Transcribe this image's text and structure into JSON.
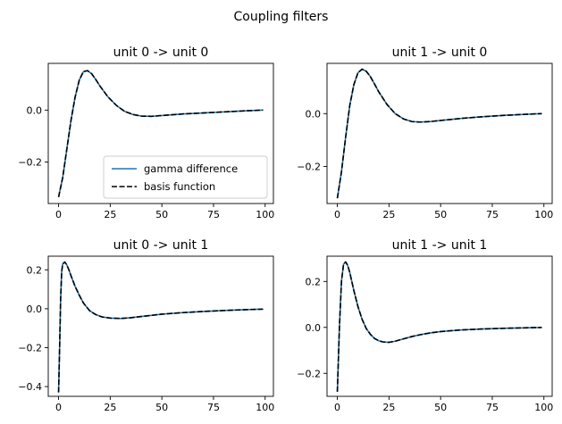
{
  "figure": {
    "title": "Coupling filters"
  },
  "chart_data": [
    {
      "type": "line",
      "title": "unit 0 -> unit 0",
      "xlim": [
        -5,
        104
      ],
      "ylim": [
        -0.36,
        0.18
      ],
      "xticks": [
        0,
        25,
        50,
        75,
        100
      ],
      "yticks": [
        0.0,
        -0.2
      ],
      "ytick_labels": [
        "0.0",
        "−0.2"
      ],
      "legend": {
        "placement": "lower-right",
        "entries": [
          {
            "label": "gamma difference",
            "color": "#1f77b4",
            "style": "solid"
          },
          {
            "label": "basis function",
            "color": "#000000",
            "style": "dashed"
          }
        ]
      },
      "series": [
        {
          "name": "gamma difference",
          "color": "#1f77b4",
          "style": "solid",
          "x": [
            0,
            2,
            4,
            6,
            8,
            10,
            12,
            14,
            16,
            18,
            20,
            24,
            28,
            32,
            36,
            40,
            45,
            50,
            55,
            60,
            70,
            80,
            90,
            99
          ],
          "y": [
            -0.335,
            -0.26,
            -0.15,
            -0.04,
            0.05,
            0.115,
            0.148,
            0.152,
            0.14,
            0.118,
            0.093,
            0.05,
            0.018,
            -0.005,
            -0.017,
            -0.023,
            -0.024,
            -0.021,
            -0.018,
            -0.015,
            -0.011,
            -0.007,
            -0.003,
            0.0
          ]
        },
        {
          "name": "basis function",
          "color": "#000000",
          "style": "dashed",
          "x": [
            0,
            2,
            4,
            6,
            8,
            10,
            12,
            14,
            16,
            18,
            20,
            24,
            28,
            32,
            36,
            40,
            45,
            50,
            55,
            60,
            70,
            80,
            90,
            99
          ],
          "y": [
            -0.335,
            -0.26,
            -0.15,
            -0.04,
            0.05,
            0.115,
            0.148,
            0.152,
            0.14,
            0.118,
            0.093,
            0.05,
            0.018,
            -0.005,
            -0.017,
            -0.023,
            -0.024,
            -0.021,
            -0.018,
            -0.015,
            -0.011,
            -0.007,
            -0.003,
            0.0
          ]
        }
      ]
    },
    {
      "type": "line",
      "title": "unit 1 -> unit 0",
      "xlim": [
        -5,
        104
      ],
      "ylim": [
        -0.34,
        0.19
      ],
      "xticks": [
        0,
        25,
        50,
        75,
        100
      ],
      "yticks": [
        0.0,
        -0.2
      ],
      "ytick_labels": [
        "0.0",
        "−0.2"
      ],
      "series": [
        {
          "name": "gamma difference",
          "color": "#1f77b4",
          "style": "solid",
          "x": [
            0,
            2,
            4,
            6,
            8,
            10,
            12,
            14,
            16,
            18,
            20,
            24,
            28,
            32,
            36,
            40,
            45,
            50,
            55,
            60,
            70,
            80,
            90,
            99
          ],
          "y": [
            -0.32,
            -0.22,
            -0.09,
            0.03,
            0.11,
            0.155,
            0.168,
            0.16,
            0.14,
            0.112,
            0.083,
            0.035,
            0.0,
            -0.02,
            -0.03,
            -0.032,
            -0.03,
            -0.026,
            -0.022,
            -0.018,
            -0.012,
            -0.007,
            -0.003,
            0.0
          ]
        },
        {
          "name": "basis function",
          "color": "#000000",
          "style": "dashed",
          "x": [
            0,
            2,
            4,
            6,
            8,
            10,
            12,
            14,
            16,
            18,
            20,
            24,
            28,
            32,
            36,
            40,
            45,
            50,
            55,
            60,
            70,
            80,
            90,
            99
          ],
          "y": [
            -0.32,
            -0.22,
            -0.09,
            0.03,
            0.11,
            0.155,
            0.168,
            0.16,
            0.14,
            0.112,
            0.083,
            0.035,
            0.0,
            -0.02,
            -0.03,
            -0.032,
            -0.03,
            -0.026,
            -0.022,
            -0.018,
            -0.012,
            -0.007,
            -0.003,
            0.0
          ]
        }
      ]
    },
    {
      "type": "line",
      "title": "unit 0 -> unit 1",
      "xlim": [
        -5,
        104
      ],
      "ylim": [
        -0.45,
        0.27
      ],
      "xticks": [
        0,
        25,
        50,
        75,
        100
      ],
      "yticks": [
        0.2,
        0.0,
        -0.2,
        -0.4
      ],
      "ytick_labels": [
        "0.2",
        "0.0",
        "−0.2",
        "−0.4"
      ],
      "series": [
        {
          "name": "gamma difference",
          "color": "#1f77b4",
          "style": "solid",
          "x": [
            0,
            0.5,
            1,
            1.5,
            2,
            3,
            4,
            5,
            6,
            8,
            10,
            12,
            15,
            18,
            21,
            25,
            30,
            35,
            40,
            45,
            50,
            60,
            70,
            80,
            90,
            99
          ],
          "y": [
            -0.43,
            -0.2,
            0.05,
            0.19,
            0.23,
            0.24,
            0.225,
            0.2,
            0.17,
            0.115,
            0.07,
            0.03,
            -0.01,
            -0.03,
            -0.042,
            -0.048,
            -0.05,
            -0.046,
            -0.04,
            -0.034,
            -0.028,
            -0.02,
            -0.014,
            -0.009,
            -0.005,
            -0.002
          ]
        },
        {
          "name": "basis function",
          "color": "#000000",
          "style": "dashed",
          "x": [
            0,
            0.5,
            1,
            1.5,
            2,
            3,
            4,
            5,
            6,
            8,
            10,
            12,
            15,
            18,
            21,
            25,
            30,
            35,
            40,
            45,
            50,
            60,
            70,
            80,
            90,
            99
          ],
          "y": [
            -0.43,
            -0.2,
            0.05,
            0.19,
            0.23,
            0.24,
            0.225,
            0.2,
            0.17,
            0.115,
            0.07,
            0.03,
            -0.01,
            -0.03,
            -0.042,
            -0.048,
            -0.05,
            -0.046,
            -0.04,
            -0.034,
            -0.028,
            -0.02,
            -0.014,
            -0.009,
            -0.005,
            -0.002
          ]
        }
      ]
    },
    {
      "type": "line",
      "title": "unit 1 -> unit 1",
      "xlim": [
        -5,
        104
      ],
      "ylim": [
        -0.3,
        0.31
      ],
      "xticks": [
        0,
        25,
        50,
        75,
        100
      ],
      "yticks": [
        0.2,
        0.0,
        -0.2
      ],
      "ytick_labels": [
        "0.2",
        "0.0",
        "−0.2"
      ],
      "series": [
        {
          "name": "gamma difference",
          "color": "#1f77b4",
          "style": "solid",
          "x": [
            0,
            1,
            2,
            3,
            4,
            5,
            6,
            7,
            8,
            10,
            12,
            14,
            16,
            18,
            20,
            22,
            25,
            28,
            32,
            36,
            40,
            45,
            50,
            60,
            70,
            80,
            90,
            99
          ],
          "y": [
            -0.28,
            0.0,
            0.2,
            0.275,
            0.285,
            0.27,
            0.24,
            0.2,
            0.16,
            0.09,
            0.035,
            -0.005,
            -0.03,
            -0.048,
            -0.058,
            -0.063,
            -0.065,
            -0.06,
            -0.05,
            -0.04,
            -0.032,
            -0.024,
            -0.018,
            -0.011,
            -0.007,
            -0.004,
            -0.002,
            0.0
          ]
        },
        {
          "name": "basis function",
          "color": "#000000",
          "style": "dashed",
          "x": [
            0,
            1,
            2,
            3,
            4,
            5,
            6,
            7,
            8,
            10,
            12,
            14,
            16,
            18,
            20,
            22,
            25,
            28,
            32,
            36,
            40,
            45,
            50,
            60,
            70,
            80,
            90,
            99
          ],
          "y": [
            -0.28,
            0.0,
            0.2,
            0.275,
            0.285,
            0.27,
            0.24,
            0.2,
            0.16,
            0.09,
            0.035,
            -0.005,
            -0.03,
            -0.048,
            -0.058,
            -0.063,
            -0.065,
            -0.06,
            -0.05,
            -0.04,
            -0.032,
            -0.024,
            -0.018,
            -0.011,
            -0.007,
            -0.004,
            -0.002,
            0.0
          ]
        }
      ]
    }
  ]
}
